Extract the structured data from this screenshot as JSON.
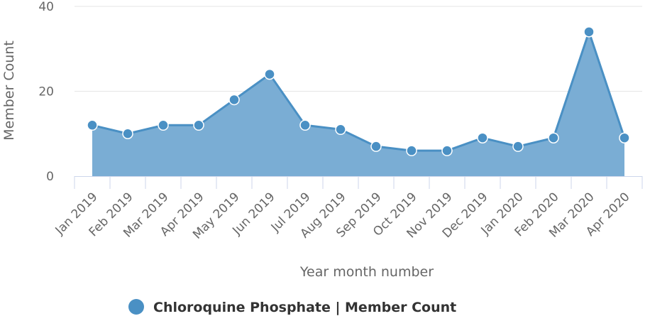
{
  "chart_data": {
    "type": "area",
    "title": "",
    "xlabel": "Year month number",
    "ylabel": "Member Count",
    "ylim": [
      0,
      40
    ],
    "yticks": [
      0,
      20,
      40
    ],
    "grid": true,
    "legend_position": "bottom-center",
    "categories": [
      "Jan 2019",
      "Feb 2019",
      "Mar 2019",
      "Apr 2019",
      "May 2019",
      "Jun 2019",
      "Jul 2019",
      "Aug 2019",
      "Sep 2019",
      "Oct 2019",
      "Nov 2019",
      "Dec 2019",
      "Jan 2020",
      "Feb 2020",
      "Mar 2020",
      "Apr 2020"
    ],
    "series": [
      {
        "name": "Chloroquine Phosphate | Member Count",
        "color": "#4a90c4",
        "fill": "#7aadd4",
        "values": [
          12,
          10,
          12,
          12,
          18,
          24,
          12,
          11,
          7,
          6,
          6,
          9,
          7,
          9,
          34,
          9
        ]
      }
    ]
  }
}
